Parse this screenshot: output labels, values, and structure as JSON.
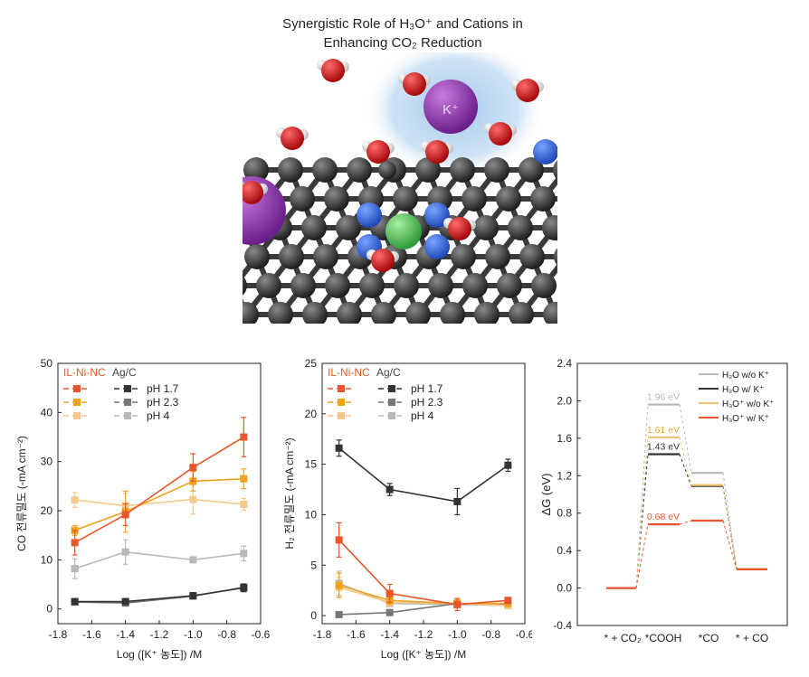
{
  "figure": {
    "title_line1": "Synergistic Role of H₃O⁺ and Cations in",
    "title_line2": "Enhancing CO₂ Reduction",
    "ion_label": "K⁺"
  },
  "chart_data": [
    {
      "type": "line",
      "xlabel": "Log ([K⁺ 농도]) /M",
      "ylabel": "CO 전류밀도 (-mA cm⁻²)",
      "xlim": [
        -1.8,
        -0.6
      ],
      "ylim": [
        -3,
        50
      ],
      "xticks": [
        -1.8,
        -1.6,
        -1.4,
        -1.2,
        -1.0,
        -0.8,
        -0.6
      ],
      "yticks": [
        0,
        10,
        20,
        30,
        40,
        50
      ],
      "legend_group_headers": [
        "IL-Ni-NC",
        "Ag/C"
      ],
      "x": [
        -1.7,
        -1.4,
        -1.0,
        -0.7
      ],
      "series": [
        {
          "name": "pH 1.7",
          "group": "IL-Ni-NC",
          "color": "#e8562a",
          "values": [
            13.5,
            19.2,
            28.8,
            35.0
          ],
          "err": [
            2.5,
            2.2,
            2.8,
            4.0
          ]
        },
        {
          "name": "pH 2.3",
          "group": "IL-Ni-NC",
          "color": "#f0a21e",
          "values": [
            16.0,
            19.8,
            26.0,
            26.5
          ],
          "err": [
            1.0,
            4.2,
            2.0,
            2.0
          ]
        },
        {
          "name": "pH 4",
          "group": "IL-Ni-NC",
          "color": "#f6c98a",
          "values": [
            22.2,
            21.0,
            22.3,
            21.3
          ],
          "err": [
            1.5,
            2.5,
            3.0,
            1.2
          ]
        },
        {
          "name": "pH 1.7",
          "group": "Ag/C",
          "color": "#333333",
          "values": [
            1.5,
            1.5,
            2.7,
            4.3
          ],
          "err": [
            0.5,
            0.4,
            0.5,
            0.8
          ]
        },
        {
          "name": "pH 2.3",
          "group": "Ag/C",
          "color": "#777777",
          "values": [
            1.4,
            1.2,
            2.6,
            4.4
          ],
          "err": [
            0.4,
            0.4,
            0.5,
            0.6
          ]
        },
        {
          "name": "pH 4",
          "group": "Ag/C",
          "color": "#b8b8b8",
          "values": [
            8.2,
            11.6,
            10.0,
            11.3
          ],
          "err": [
            2.0,
            2.5,
            0.5,
            1.5
          ]
        }
      ]
    },
    {
      "type": "line",
      "xlabel": "Log ([K⁺ 농도]) /M",
      "ylabel": "H₂ 전류밀도 (-mA cm⁻²)",
      "xlim": [
        -1.8,
        -0.6
      ],
      "ylim": [
        -0.8,
        25
      ],
      "xticks": [
        -1.8,
        -1.6,
        -1.4,
        -1.2,
        -1.0,
        -0.8,
        -0.6
      ],
      "yticks": [
        0,
        5,
        10,
        15,
        20,
        25
      ],
      "legend_group_headers": [
        "IL-Ni-NC",
        "Ag/C"
      ],
      "x": [
        -1.7,
        -1.4,
        -1.0,
        -0.7
      ],
      "series": [
        {
          "name": "pH 1.7",
          "group": "IL-Ni-NC",
          "color": "#e8562a",
          "values": [
            7.5,
            2.2,
            1.1,
            1.5
          ],
          "err": [
            1.7,
            0.9,
            0.6,
            0.3
          ]
        },
        {
          "name": "pH 2.3",
          "group": "IL-Ni-NC",
          "color": "#f0a21e",
          "values": [
            3.0,
            1.5,
            1.2,
            1.2
          ],
          "err": [
            1.2,
            0.4,
            0.4,
            0.3
          ]
        },
        {
          "name": "pH 4",
          "group": "IL-Ni-NC",
          "color": "#f6c98a",
          "values": [
            2.8,
            1.3,
            1.2,
            1.0
          ],
          "err": [
            1.0,
            0.3,
            0.3,
            0.3
          ]
        },
        {
          "name": "pH 1.7",
          "group": "Ag/C",
          "color": "#333333",
          "values": [
            16.6,
            12.5,
            11.3,
            14.9
          ],
          "err": [
            0.8,
            0.6,
            1.3,
            0.6
          ]
        },
        {
          "name": "pH 2.3",
          "group": "Ag/C",
          "color": "#777777",
          "values": [
            0.1,
            0.3,
            1.2,
            1.1
          ],
          "err": [
            0.2,
            0.2,
            0.2,
            0.2
          ]
        },
        {
          "name": "pH 4",
          "group": "Ag/C",
          "color": "#b8b8b8",
          "values": [
            3.2,
            1.2,
            1.1,
            1.0
          ],
          "err": [
            1.2,
            0.3,
            0.3,
            0.3
          ]
        }
      ]
    },
    {
      "type": "line",
      "subtype": "energy_diagram",
      "xlabel": "",
      "ylabel": "ΔG (eV)",
      "ylim": [
        -0.4,
        2.4
      ],
      "yticks": [
        -0.4,
        0.0,
        0.4,
        0.8,
        1.2,
        1.6,
        2.0,
        2.4
      ],
      "ytick_labels": [
        "-0.4",
        "0.0",
        "0.4",
        "0.8",
        "1.2",
        "1.6",
        "2.0",
        "2.4"
      ],
      "categories": [
        "* + CO₂",
        "*COOH",
        "*CO",
        "* + CO"
      ],
      "series": [
        {
          "name": "H₂O w/o K⁺",
          "color": "#b8b8b8",
          "values": [
            0.0,
            1.96,
            1.23,
            0.2
          ],
          "annotation": "1.96 eV"
        },
        {
          "name": "H₂O w/ K⁺",
          "color": "#333333",
          "values": [
            0.0,
            1.43,
            1.09,
            0.2
          ],
          "annotation": "1.43 eV"
        },
        {
          "name": "H₃O⁺ w/o K⁺",
          "color": "#f2c36f",
          "values": [
            0.0,
            1.61,
            1.1,
            0.2
          ],
          "annotation": "1.61 eV"
        },
        {
          "name": "H₃O⁺ w/ K⁺",
          "color": "#e8562a",
          "values": [
            0.0,
            0.68,
            0.72,
            0.2
          ],
          "annotation": "0.68 eV"
        }
      ]
    }
  ]
}
